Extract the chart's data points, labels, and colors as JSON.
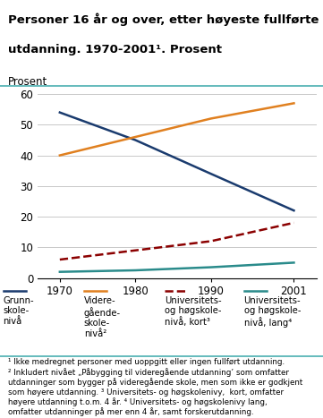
{
  "title_line1": "Personer 16 år og over, etter høyeste fullførte",
  "title_line2": "utdanning. 1970-2001¹. Prosent",
  "ylabel": "Prosent",
  "years": [
    1970,
    1980,
    1990,
    2001
  ],
  "series": [
    {
      "label_lines": [
        "Grunn-",
        "skole-",
        "nivå"
      ],
      "values": [
        54,
        45,
        34,
        22
      ],
      "color": "#1a3b6e",
      "linestyle": "solid",
      "linewidth": 1.8
    },
    {
      "label_lines": [
        "Videre-",
        "gående-",
        "skole-",
        "nivå²"
      ],
      "values": [
        40,
        46,
        52,
        57
      ],
      "color": "#e08020",
      "linestyle": "solid",
      "linewidth": 1.8
    },
    {
      "label_lines": [
        "Universitets-",
        "og høgskole-",
        "nivå, kort³"
      ],
      "values": [
        6,
        9,
        12,
        18
      ],
      "color": "#8b0000",
      "linestyle": "dashed",
      "linewidth": 1.8
    },
    {
      "label_lines": [
        "Universitets-",
        "og høgskole-",
        "nivå, lang⁴"
      ],
      "values": [
        2,
        2.5,
        3.5,
        5
      ],
      "color": "#2a8b8b",
      "linestyle": "solid",
      "linewidth": 1.8
    }
  ],
  "xlim": [
    1967,
    2004
  ],
  "ylim": [
    0,
    60
  ],
  "yticks": [
    0,
    10,
    20,
    30,
    40,
    50,
    60
  ],
  "xticks": [
    1970,
    1980,
    1990,
    2001
  ],
  "footnote_lines": [
    "¹ Ikke medregnet personer med uoppgitt eller ingen fullført utdanning.",
    "² Inkludert nivået „Påbygging til videregående utdanning’ som omfatter",
    "utdanninger som bygger på videregående skole, men som ikke er godkjent",
    "som høyere utdanning. ³ Universitets- og høgskolenivy,  kort, omfatter",
    "høyere utdanning t.o.m. 4 år. ⁴ Universitets- og høgskolenivy lang,",
    "omfatter utdanninger på mer enn 4 år, samt forskerutdanning."
  ],
  "bg_color": "#ffffff",
  "grid_color": "#c8c8c8",
  "title_sep_color": "#4aafb0",
  "footnote_sep_color": "#4aafb0"
}
